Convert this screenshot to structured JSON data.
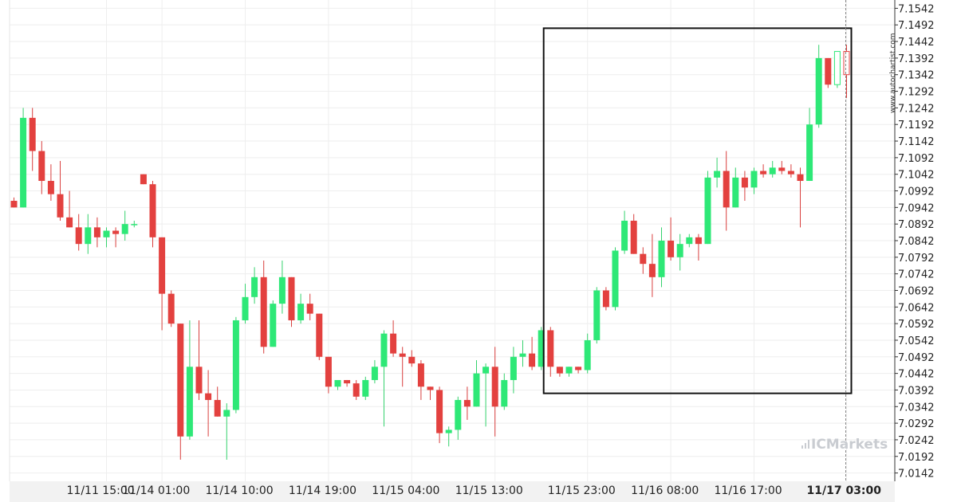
{
  "chart_data": {
    "type": "candlestick",
    "title": "",
    "xlabel": "",
    "ylabel": "",
    "ylim": [
      7.0117,
      7.1567
    ],
    "y_ticks": [
      "7.1542",
      "7.1492",
      "7.1442",
      "7.1392",
      "7.1342",
      "7.1292",
      "7.1242",
      "7.1192",
      "7.1142",
      "7.1092",
      "7.1042",
      "7.0992",
      "7.0942",
      "7.0892",
      "7.0842",
      "7.0792",
      "7.0742",
      "7.0692",
      "7.0642",
      "7.0592",
      "7.0542",
      "7.0492",
      "7.0442",
      "7.0392",
      "7.0342",
      "7.0292",
      "7.0242",
      "7.0192",
      "7.0142"
    ],
    "x_ticks": [
      {
        "label": "11/11 15:00",
        "bar": 10,
        "bold": false
      },
      {
        "label": "11/14 01:00",
        "bar": 16,
        "bold": false
      },
      {
        "label": "11/14 10:00",
        "bar": 25,
        "bold": false
      },
      {
        "label": "11/14 19:00",
        "bar": 34,
        "bold": false
      },
      {
        "label": "11/15 04:00",
        "bar": 43,
        "bold": false
      },
      {
        "label": "11/15 13:00",
        "bar": 52,
        "bold": false
      },
      {
        "label": "11/15 23:00",
        "bar": 62,
        "bold": false
      },
      {
        "label": "11/16 08:00",
        "bar": 71,
        "bold": false
      },
      {
        "label": "11/16 17:00",
        "bar": 80,
        "bold": false
      },
      {
        "label": "11/17 03:00",
        "bar": 90,
        "bold": true
      }
    ],
    "candles": [
      {
        "o": 7.0962,
        "h": 7.0972,
        "l": 7.0942,
        "c": 7.0942
      },
      {
        "o": 7.0942,
        "h": 7.1242,
        "l": 7.0942,
        "c": 7.1212
      },
      {
        "o": 7.1212,
        "h": 7.1242,
        "l": 7.1052,
        "c": 7.1112
      },
      {
        "o": 7.1112,
        "h": 7.1142,
        "l": 7.0982,
        "c": 7.1022
      },
      {
        "o": 7.1022,
        "h": 7.1072,
        "l": 7.0962,
        "c": 7.0982
      },
      {
        "o": 7.0982,
        "h": 7.1082,
        "l": 7.0902,
        "c": 7.0912
      },
      {
        "o": 7.0912,
        "h": 7.0992,
        "l": 7.0882,
        "c": 7.0882
      },
      {
        "o": 7.0882,
        "h": 7.0922,
        "l": 7.0812,
        "c": 7.0832
      },
      {
        "o": 7.0832,
        "h": 7.0922,
        "l": 7.0802,
        "c": 7.0882
      },
      {
        "o": 7.0882,
        "h": 7.0912,
        "l": 7.0822,
        "c": 7.0852
      },
      {
        "o": 7.0852,
        "h": 7.0882,
        "l": 7.0822,
        "c": 7.0872
      },
      {
        "o": 7.0872,
        "h": 7.0882,
        "l": 7.0822,
        "c": 7.0862
      },
      {
        "o": 7.0862,
        "h": 7.0932,
        "l": 7.0842,
        "c": 7.0892
      },
      {
        "o": 7.0892,
        "h": 7.0902,
        "l": 7.0882,
        "c": 7.0892
      },
      {
        "o": 7.1042,
        "h": 7.1042,
        "l": 7.1012,
        "c": 7.1012
      },
      {
        "o": 7.1012,
        "h": 7.1022,
        "l": 7.0822,
        "c": 7.0852
      },
      {
        "o": 7.0852,
        "h": 7.0852,
        "l": 7.0572,
        "c": 7.0682
      },
      {
        "o": 7.0682,
        "h": 7.0692,
        "l": 7.0582,
        "c": 7.0592
      },
      {
        "o": 7.0592,
        "h": 7.0592,
        "l": 7.0182,
        "c": 7.0252
      },
      {
        "o": 7.0252,
        "h": 7.0602,
        "l": 7.0242,
        "c": 7.0462
      },
      {
        "o": 7.0462,
        "h": 7.0602,
        "l": 7.0362,
        "c": 7.0382
      },
      {
        "o": 7.0382,
        "h": 7.0452,
        "l": 7.0252,
        "c": 7.0362
      },
      {
        "o": 7.0362,
        "h": 7.0402,
        "l": 7.0312,
        "c": 7.0312
      },
      {
        "o": 7.0312,
        "h": 7.0352,
        "l": 7.0182,
        "c": 7.0332
      },
      {
        "o": 7.0332,
        "h": 7.0612,
        "l": 7.0322,
        "c": 7.0602
      },
      {
        "o": 7.0602,
        "h": 7.0712,
        "l": 7.0592,
        "c": 7.0672
      },
      {
        "o": 7.0672,
        "h": 7.0762,
        "l": 7.0652,
        "c": 7.0732
      },
      {
        "o": 7.0732,
        "h": 7.0782,
        "l": 7.0502,
        "c": 7.0522
      },
      {
        "o": 7.0522,
        "h": 7.0662,
        "l": 7.0522,
        "c": 7.0652
      },
      {
        "o": 7.0652,
        "h": 7.0782,
        "l": 7.0622,
        "c": 7.0732
      },
      {
        "o": 7.0732,
        "h": 7.0732,
        "l": 7.0582,
        "c": 7.0602
      },
      {
        "o": 7.0602,
        "h": 7.0682,
        "l": 7.0592,
        "c": 7.0652
      },
      {
        "o": 7.0652,
        "h": 7.0682,
        "l": 7.0602,
        "c": 7.0622
      },
      {
        "o": 7.0622,
        "h": 7.0622,
        "l": 7.0482,
        "c": 7.0492
      },
      {
        "o": 7.0492,
        "h": 7.0492,
        "l": 7.0382,
        "c": 7.0402
      },
      {
        "o": 7.0402,
        "h": 7.0422,
        "l": 7.0392,
        "c": 7.0422
      },
      {
        "o": 7.0422,
        "h": 7.0422,
        "l": 7.0402,
        "c": 7.0412
      },
      {
        "o": 7.0412,
        "h": 7.0422,
        "l": 7.0362,
        "c": 7.0372
      },
      {
        "o": 7.0372,
        "h": 7.0432,
        "l": 7.0362,
        "c": 7.0422
      },
      {
        "o": 7.0422,
        "h": 7.0482,
        "l": 7.0412,
        "c": 7.0462
      },
      {
        "o": 7.0462,
        "h": 7.0572,
        "l": 7.0282,
        "c": 7.0562
      },
      {
        "o": 7.0562,
        "h": 7.0602,
        "l": 7.0492,
        "c": 7.0502
      },
      {
        "o": 7.0502,
        "h": 7.0522,
        "l": 7.0402,
        "c": 7.0492
      },
      {
        "o": 7.0492,
        "h": 7.0512,
        "l": 7.0462,
        "c": 7.0472
      },
      {
        "o": 7.0472,
        "h": 7.0482,
        "l": 7.0362,
        "c": 7.0402
      },
      {
        "o": 7.0402,
        "h": 7.0402,
        "l": 7.0362,
        "c": 7.0392
      },
      {
        "o": 7.0392,
        "h": 7.0402,
        "l": 7.0232,
        "c": 7.0262
      },
      {
        "o": 7.0262,
        "h": 7.0282,
        "l": 7.0222,
        "c": 7.0272
      },
      {
        "o": 7.0272,
        "h": 7.0372,
        "l": 7.0242,
        "c": 7.0362
      },
      {
        "o": 7.0362,
        "h": 7.0402,
        "l": 7.0302,
        "c": 7.0342
      },
      {
        "o": 7.0342,
        "h": 7.0482,
        "l": 7.0342,
        "c": 7.0442
      },
      {
        "o": 7.0442,
        "h": 7.0472,
        "l": 7.0282,
        "c": 7.0462
      },
      {
        "o": 7.0462,
        "h": 7.0522,
        "l": 7.0252,
        "c": 7.0342
      },
      {
        "o": 7.0342,
        "h": 7.0442,
        "l": 7.0332,
        "c": 7.0422
      },
      {
        "o": 7.0422,
        "h": 7.0522,
        "l": 7.0382,
        "c": 7.0492
      },
      {
        "o": 7.0492,
        "h": 7.0542,
        "l": 7.0462,
        "c": 7.0502
      },
      {
        "o": 7.0502,
        "h": 7.0552,
        "l": 7.0452,
        "c": 7.0462
      },
      {
        "o": 7.0462,
        "h": 7.0582,
        "l": 7.0452,
        "c": 7.0572
      },
      {
        "o": 7.0572,
        "h": 7.0582,
        "l": 7.0432,
        "c": 7.0462
      },
      {
        "o": 7.0462,
        "h": 7.0462,
        "l": 7.0432,
        "c": 7.0442
      },
      {
        "o": 7.0442,
        "h": 7.0462,
        "l": 7.0432,
        "c": 7.0462
      },
      {
        "o": 7.0462,
        "h": 7.0462,
        "l": 7.0442,
        "c": 7.0452
      },
      {
        "o": 7.0452,
        "h": 7.0562,
        "l": 7.0442,
        "c": 7.0542
      },
      {
        "o": 7.0542,
        "h": 7.0702,
        "l": 7.0532,
        "c": 7.0692
      },
      {
        "o": 7.0692,
        "h": 7.0702,
        "l": 7.0632,
        "c": 7.0642
      },
      {
        "o": 7.0642,
        "h": 7.0822,
        "l": 7.0632,
        "c": 7.0812
      },
      {
        "o": 7.0812,
        "h": 7.0932,
        "l": 7.0802,
        "c": 7.0902
      },
      {
        "o": 7.0902,
        "h": 7.0922,
        "l": 7.0802,
        "c": 7.0802
      },
      {
        "o": 7.0802,
        "h": 7.0822,
        "l": 7.0742,
        "c": 7.0772
      },
      {
        "o": 7.0772,
        "h": 7.0862,
        "l": 7.0672,
        "c": 7.0732
      },
      {
        "o": 7.0732,
        "h": 7.0882,
        "l": 7.0702,
        "c": 7.0842
      },
      {
        "o": 7.0842,
        "h": 7.0912,
        "l": 7.0782,
        "c": 7.0792
      },
      {
        "o": 7.0792,
        "h": 7.0862,
        "l": 7.0752,
        "c": 7.0832
      },
      {
        "o": 7.0832,
        "h": 7.0862,
        "l": 7.0822,
        "c": 7.0852
      },
      {
        "o": 7.0852,
        "h": 7.0862,
        "l": 7.0782,
        "c": 7.0832
      },
      {
        "o": 7.0832,
        "h": 7.1052,
        "l": 7.0832,
        "c": 7.1032
      },
      {
        "o": 7.1032,
        "h": 7.1092,
        "l": 7.1002,
        "c": 7.1052
      },
      {
        "o": 7.1052,
        "h": 7.1112,
        "l": 7.0872,
        "c": 7.0942
      },
      {
        "o": 7.0942,
        "h": 7.1062,
        "l": 7.0942,
        "c": 7.1032
      },
      {
        "o": 7.1032,
        "h": 7.1052,
        "l": 7.0962,
        "c": 7.1002
      },
      {
        "o": 7.1002,
        "h": 7.1062,
        "l": 7.0982,
        "c": 7.1052
      },
      {
        "o": 7.1052,
        "h": 7.1072,
        "l": 7.1032,
        "c": 7.1042
      },
      {
        "o": 7.1042,
        "h": 7.1082,
        "l": 7.1032,
        "c": 7.1062
      },
      {
        "o": 7.1062,
        "h": 7.1082,
        "l": 7.1042,
        "c": 7.1052
      },
      {
        "o": 7.1052,
        "h": 7.1072,
        "l": 7.1032,
        "c": 7.1042
      },
      {
        "o": 7.1042,
        "h": 7.1062,
        "l": 7.0882,
        "c": 7.1022
      },
      {
        "o": 7.1022,
        "h": 7.1242,
        "l": 7.1022,
        "c": 7.1192
      },
      {
        "o": 7.1192,
        "h": 7.1432,
        "l": 7.1182,
        "c": 7.1392
      },
      {
        "o": 7.1392,
        "h": 7.1392,
        "l": 7.1302,
        "c": 7.1312
      },
      {
        "o": 7.1312,
        "h": 7.1412,
        "l": 7.1302,
        "c": 7.1412,
        "hollow": true
      },
      {
        "o": 7.1412,
        "h": 7.1432,
        "l": 7.1272,
        "c": 7.1342,
        "hollow": true
      }
    ],
    "pattern_box": {
      "from_bar": 57,
      "to_bar": 90,
      "high": 7.1482,
      "low": 7.0382
    },
    "current_time_bar": 90,
    "colors": {
      "up": "#2ee877",
      "down": "#e3413f",
      "wick_up": "#35d26d",
      "wick_down": "#d9403e",
      "box": "#111111",
      "grid": "#eeeeee"
    }
  },
  "watermark": "www.autochartist.com",
  "brand": "ICMarkets",
  "brand_icon": "bar-chart-icon"
}
